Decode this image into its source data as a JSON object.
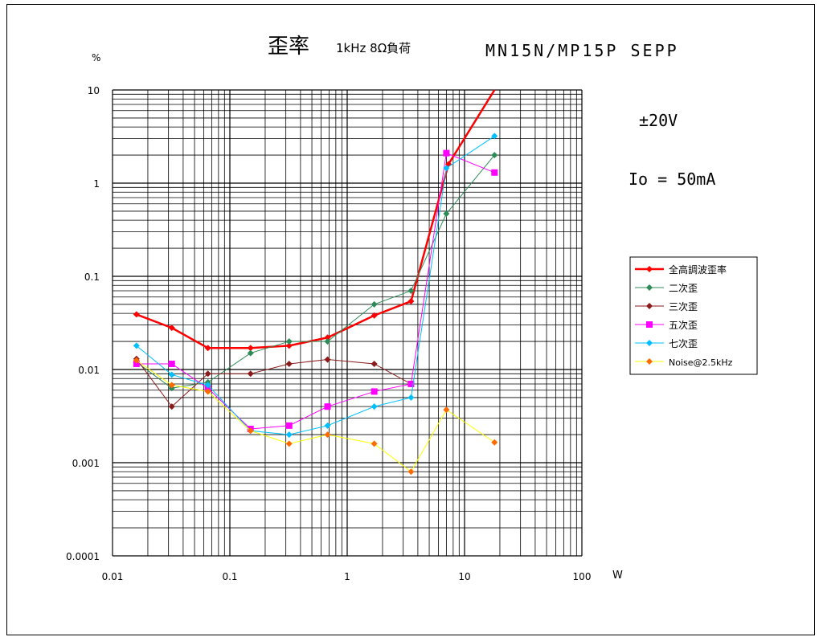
{
  "chart_data": {
    "type": "line",
    "title": "歪率",
    "subtitle": "1kHz 8Ω負荷",
    "device_label": "MN15N/MP15P SEPP",
    "annotations": [
      "±20V",
      "Io = 50mA"
    ],
    "xlabel": "W",
    "ylabel": "%",
    "x_scale": "log",
    "y_scale": "log",
    "xlim": [
      0.01,
      100
    ],
    "ylim": [
      0.0001,
      10
    ],
    "x_ticks": [
      "0.01",
      "0.1",
      "1",
      "10",
      "100"
    ],
    "y_ticks": [
      "0.0001",
      "0.001",
      "0.01",
      "0.1",
      "1",
      "10"
    ],
    "grid": true,
    "legend_position": "right",
    "series": [
      {
        "name": "全高調波歪率",
        "color": "#ff0000",
        "marker": "diamond",
        "x": [
          0.016,
          0.032,
          0.065,
          0.15,
          0.32,
          0.68,
          1.7,
          3.5,
          7.3,
          18
        ],
        "y": [
          0.039,
          0.028,
          0.017,
          0.017,
          0.018,
          0.022,
          0.038,
          0.054,
          1.6,
          10
        ]
      },
      {
        "name": "二次歪",
        "color": "#2e8b57",
        "marker": "diamond",
        "x": [
          0.016,
          0.032,
          0.065,
          0.15,
          0.32,
          0.68,
          1.7,
          3.5,
          7.0,
          18
        ],
        "y": [
          0.012,
          0.0063,
          0.0073,
          0.015,
          0.02,
          0.02,
          0.05,
          0.07,
          0.47,
          2.0
        ]
      },
      {
        "name": "三次歪",
        "color": "#8b1a1a",
        "marker": "diamond",
        "x": [
          0.016,
          0.032,
          0.065,
          0.15,
          0.32,
          0.68,
          1.7,
          3.5
        ],
        "y": [
          0.013,
          0.004,
          0.009,
          0.009,
          0.0115,
          0.0128,
          0.0115,
          0.007
        ]
      },
      {
        "name": "五次歪",
        "color": "#ff00ff",
        "marker": "square",
        "x": [
          0.016,
          0.032,
          0.065,
          0.15,
          0.32,
          0.68,
          1.7,
          3.5,
          7.0,
          18
        ],
        "y": [
          0.0115,
          0.0115,
          0.0063,
          0.0023,
          0.0025,
          0.004,
          0.0058,
          0.007,
          2.1,
          1.3
        ]
      },
      {
        "name": "七次歪",
        "color": "#00bfff",
        "marker": "diamond",
        "x": [
          0.016,
          0.032,
          0.065,
          0.15,
          0.32,
          0.68,
          1.7,
          3.5,
          7.0,
          18
        ],
        "y": [
          0.018,
          0.0088,
          0.0068,
          0.0022,
          0.002,
          0.0025,
          0.004,
          0.005,
          1.45,
          3.2
        ]
      },
      {
        "name": "Noise@2.5kHz",
        "color": "#ff6a00",
        "line_color": "#ffff00",
        "marker": "diamond",
        "x": [
          0.016,
          0.032,
          0.065,
          0.15,
          0.32,
          0.68,
          1.7,
          3.5,
          7.0,
          18
        ],
        "y": [
          0.0125,
          0.0068,
          0.0058,
          0.0022,
          0.0016,
          0.002,
          0.0016,
          0.0008,
          0.0037,
          0.00165
        ]
      }
    ]
  }
}
